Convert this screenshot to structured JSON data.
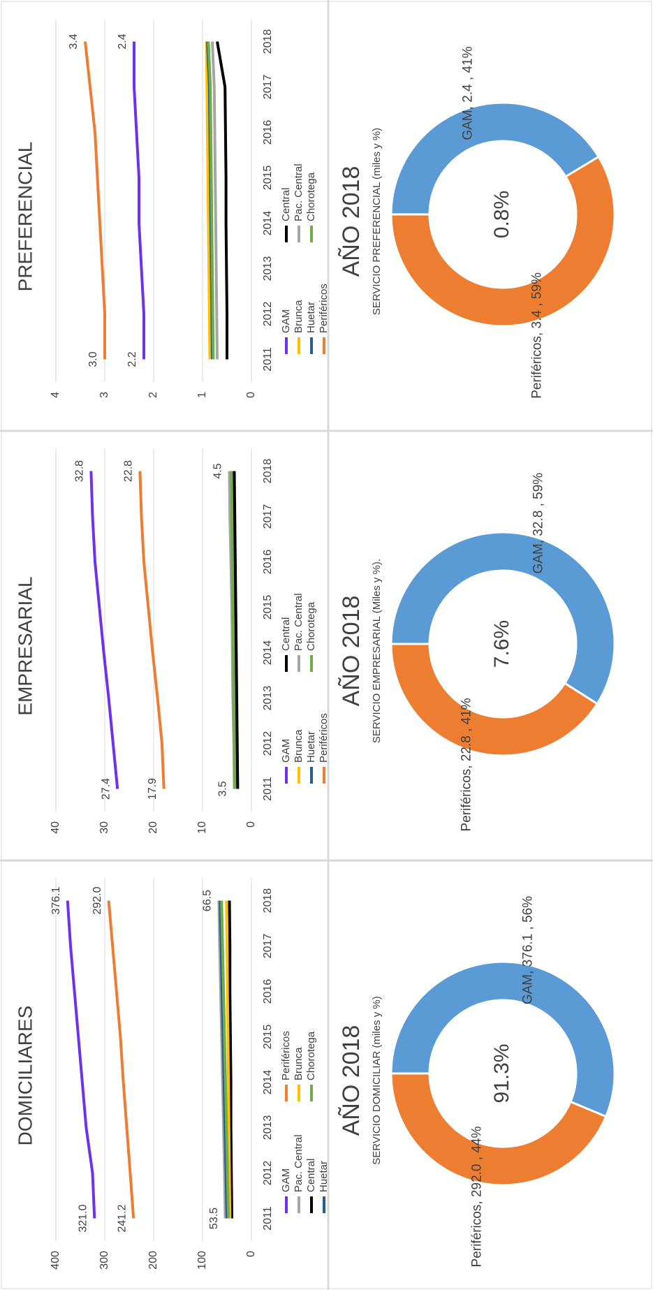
{
  "chart_data": [
    {
      "type": "line",
      "title": "DOMICILIARES",
      "categories": [
        "2011",
        "2012",
        "2013",
        "2014",
        "2015",
        "2016",
        "2017",
        "2018"
      ],
      "ylim": [
        0,
        400
      ],
      "yticks": [
        0,
        100,
        200,
        300,
        400
      ],
      "grid": true,
      "series": [
        {
          "name": "GAM",
          "color": "#7030f0",
          "values": [
            321.0,
            325,
            338,
            346,
            354,
            362,
            370,
            376.1
          ],
          "value_labels": [
            "321.0",
            null,
            null,
            null,
            null,
            null,
            null,
            "376.1"
          ]
        },
        {
          "name": "Pac. Central",
          "color": "#a5a5a5",
          "values": [
            53.5,
            55,
            57,
            59,
            61,
            63,
            65,
            66.5
          ],
          "value_labels": [
            "53.5",
            null,
            null,
            null,
            null,
            null,
            null,
            "66.5"
          ]
        },
        {
          "name": "Central",
          "color": "#000000",
          "values": [
            40,
            41,
            42,
            42,
            43,
            44,
            44,
            45
          ]
        },
        {
          "name": "Huetar",
          "color": "#255e91",
          "values": [
            50,
            52,
            54,
            56,
            58,
            60,
            62,
            64
          ]
        },
        {
          "name": "Periféricos",
          "color": "#ed7d31",
          "values": [
            241.2,
            248,
            255,
            262,
            268,
            276,
            284,
            292.0
          ],
          "value_labels": [
            "241.2",
            null,
            null,
            null,
            null,
            null,
            null,
            "292.0"
          ]
        },
        {
          "name": "Brunca",
          "color": "#ffc000",
          "values": [
            44,
            45,
            46,
            47,
            48,
            49,
            50,
            51
          ]
        },
        {
          "name": "Chorotega",
          "color": "#70ad47",
          "values": [
            47,
            49,
            51,
            53,
            55,
            57,
            59,
            61
          ]
        }
      ]
    },
    {
      "type": "line",
      "title": "EMPRESARIAL",
      "categories": [
        "2011",
        "2012",
        "2013",
        "2014",
        "2015",
        "2016",
        "2017",
        "2018"
      ],
      "ylim": [
        0,
        40
      ],
      "yticks": [
        0,
        10,
        20,
        30,
        40
      ],
      "grid": true,
      "series": [
        {
          "name": "GAM",
          "color": "#7030f0",
          "values": [
            27.4,
            28.3,
            29.2,
            30.2,
            31.1,
            32,
            32.5,
            32.8
          ],
          "value_labels": [
            "27.4",
            null,
            null,
            null,
            null,
            null,
            null,
            "32.8"
          ]
        },
        {
          "name": "Brunca",
          "color": "#ffc000",
          "values": [
            3.2,
            3.3,
            3.4,
            3.5,
            3.6,
            3.7,
            3.8,
            3.9
          ]
        },
        {
          "name": "Huetar",
          "color": "#255e91",
          "values": [
            3.3,
            3.4,
            3.5,
            3.6,
            3.7,
            3.8,
            3.9,
            4.0
          ]
        },
        {
          "name": "Periféricos",
          "color": "#ed7d31",
          "values": [
            17.9,
            18.3,
            19.2,
            20.2,
            21.1,
            22,
            22.5,
            22.8
          ],
          "value_labels": [
            "17.9",
            null,
            null,
            null,
            null,
            null,
            null,
            "22.8"
          ]
        },
        {
          "name": "Central",
          "color": "#000000",
          "values": [
            2.8,
            2.9,
            3.0,
            3.1,
            3.2,
            3.3,
            3.4,
            3.5
          ]
        },
        {
          "name": "Pac. Central",
          "color": "#a5a5a5",
          "values": [
            3.5,
            3.6,
            3.8,
            3.9,
            4.0,
            4.2,
            4.4,
            4.5
          ],
          "value_labels": [
            "3.5",
            null,
            null,
            null,
            null,
            null,
            null,
            "4.5"
          ]
        },
        {
          "name": "Chorotega",
          "color": "#70ad47",
          "values": [
            3.4,
            3.5,
            3.6,
            3.7,
            3.8,
            3.9,
            4.0,
            4.1
          ]
        }
      ]
    },
    {
      "type": "line",
      "title": "PREFERENCIAL",
      "categories": [
        "2011",
        "2012",
        "2013",
        "2014",
        "2015",
        "2016",
        "2017",
        "2018"
      ],
      "ylim": [
        0,
        4
      ],
      "yticks": [
        0,
        1,
        2,
        3,
        4
      ],
      "grid": true,
      "series": [
        {
          "name": "GAM",
          "color": "#7030f0",
          "values": [
            2.2,
            2.2,
            2.25,
            2.3,
            2.3,
            2.35,
            2.4,
            2.4
          ],
          "value_labels": [
            "2.2",
            null,
            null,
            null,
            null,
            null,
            null,
            "2.4"
          ]
        },
        {
          "name": "Brunca",
          "color": "#ffc000",
          "values": [
            0.85,
            0.86,
            0.87,
            0.88,
            0.89,
            0.9,
            0.91,
            0.92
          ]
        },
        {
          "name": "Huetar",
          "color": "#255e91",
          "values": [
            0.8,
            0.81,
            0.82,
            0.83,
            0.84,
            0.85,
            0.86,
            0.9
          ]
        },
        {
          "name": "Periféricos",
          "color": "#ed7d31",
          "values": [
            3.0,
            3.0,
            3.05,
            3.1,
            3.15,
            3.2,
            3.3,
            3.4
          ],
          "value_labels": [
            "3.0",
            null,
            null,
            null,
            null,
            null,
            null,
            "3.4"
          ]
        },
        {
          "name": "Central",
          "color": "#000000",
          "values": [
            0.5,
            0.5,
            0.51,
            0.52,
            0.52,
            0.53,
            0.54,
            0.7
          ]
        },
        {
          "name": "Pac. Central",
          "color": "#a5a5a5",
          "values": [
            0.7,
            0.71,
            0.72,
            0.73,
            0.74,
            0.75,
            0.76,
            0.8
          ]
        },
        {
          "name": "Chorotega",
          "color": "#70ad47",
          "values": [
            0.78,
            0.79,
            0.8,
            0.81,
            0.82,
            0.83,
            0.84,
            0.88
          ]
        }
      ]
    },
    {
      "type": "pie",
      "title": "AÑO 2018",
      "subtitle": "SERVICIO DOMICILIAR (miles y %)",
      "center_label": "91.3%",
      "categories": [
        "GAM",
        "Periféricos"
      ],
      "values": [
        376.1,
        292.0
      ],
      "colors": [
        "#5b9bd5",
        "#ed7d31"
      ],
      "data_labels": [
        "GAM, 376.1 , 56%",
        "Periféricos, 292.0 , 44%"
      ]
    },
    {
      "type": "pie",
      "title": "AÑO 2018",
      "subtitle": "SERVICIO EMPRESARIAL (Miles y %).",
      "center_label": "7.6%",
      "categories": [
        "GAM",
        "Periféricos"
      ],
      "values": [
        32.8,
        22.8
      ],
      "colors": [
        "#5b9bd5",
        "#ed7d31"
      ],
      "data_labels": [
        "GAM, 32.8 , 59%",
        "Periféricos, 22.8 , 41%"
      ]
    },
    {
      "type": "pie",
      "title": "AÑO 2018",
      "subtitle": "SERVICIO PREFERENCIAL (miles y %)",
      "center_label": "0.8%",
      "categories": [
        "GAM",
        "Periféricos"
      ],
      "values": [
        2.4,
        3.4
      ],
      "colors": [
        "#5b9bd5",
        "#ed7d31"
      ],
      "data_labels": [
        "GAM, 2.4 , 41%",
        "Periféricos, 3.4 , 59%"
      ]
    }
  ]
}
